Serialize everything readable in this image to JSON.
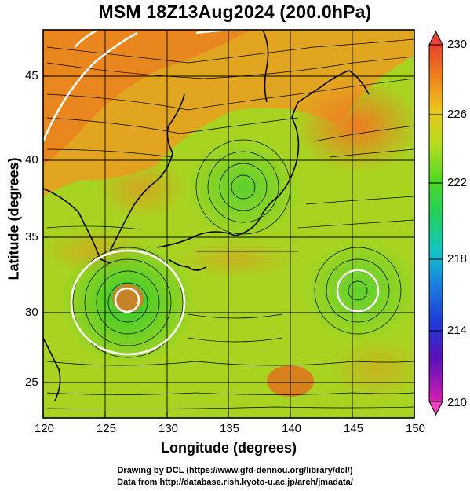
{
  "title": "MSM 18Z13Aug2024 (200.0hPa)",
  "x_axis": {
    "label": "Longitude (degrees)",
    "range": [
      120,
      150
    ],
    "ticks": [
      "120",
      "125",
      "130",
      "135",
      "140",
      "145",
      "150"
    ]
  },
  "y_axis": {
    "label": "Latitude  (degrees)",
    "range": [
      22.5,
      48
    ],
    "ticks": [
      "25",
      "30",
      "35",
      "40",
      "45"
    ]
  },
  "colorbar": {
    "range": [
      210,
      230
    ],
    "ticks": [
      "230",
      "226",
      "222",
      "218",
      "214",
      "210"
    ]
  },
  "credits": {
    "line1": "Drawing by DCL (https://www.gfd-dennou.org/library/dcl/)",
    "line2": "Data from http://database.rish.kyoto-u.ac.jp/arch/jmadata/"
  },
  "map_features": {
    "vortices_lonlat": [
      [
        126.5,
        30.5
      ],
      [
        135.5,
        38.5
      ],
      [
        145.5,
        31.5
      ]
    ],
    "grid": true,
    "streamlines": true,
    "field_colors": {
      "warm": "#f08a1c",
      "mid": "#b8d620",
      "cool": "#3ccf2a"
    }
  }
}
